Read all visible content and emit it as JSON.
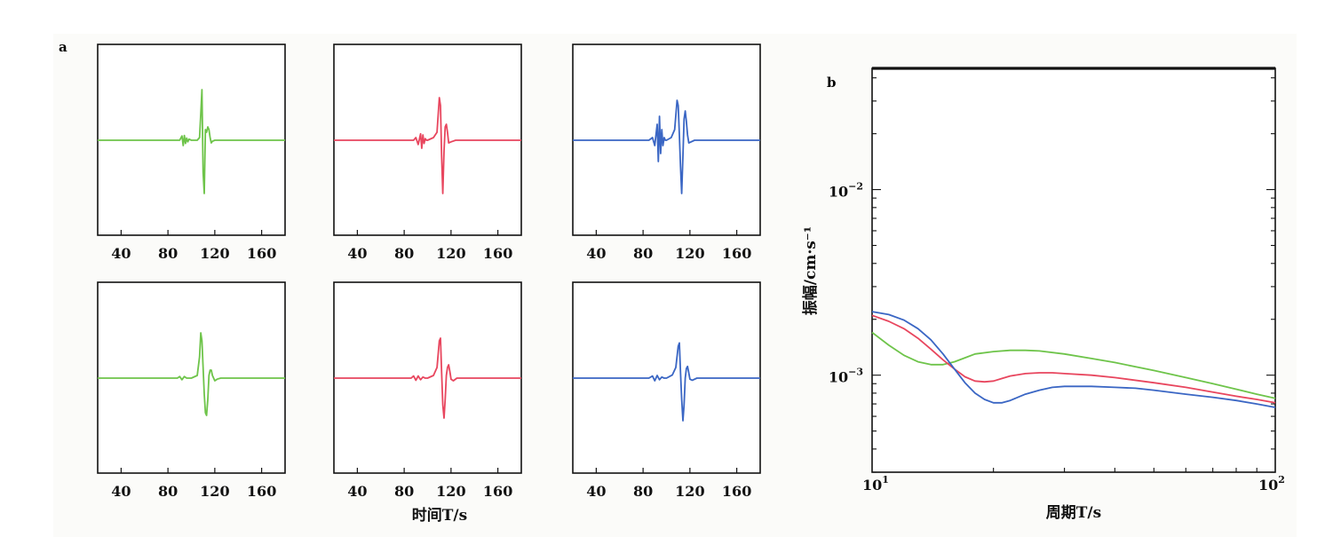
{
  "panel_a": {
    "label": "a",
    "xlabel": "时间T/s",
    "xticks": [
      "40",
      "80",
      "120",
      "160"
    ]
  },
  "panel_b": {
    "label": "b",
    "xlabel": "周期T/s",
    "ylabel": "振幅/cm·s⁻¹"
  },
  "colors": {
    "green": "#6ec44a",
    "red": "#e8465e",
    "blue": "#3a66c4"
  },
  "chart_data": [
    {
      "type": "line",
      "panel": "a",
      "subplot": "row1-col1",
      "xlim": [
        20,
        180
      ],
      "series": [
        {
          "color": "green",
          "x": [
            20,
            90,
            92,
            93,
            94,
            95,
            96,
            97,
            98,
            100,
            105,
            107,
            108,
            109,
            110,
            111,
            112,
            113,
            114,
            115,
            116,
            117,
            118,
            120,
            123,
            180
          ],
          "y": [
            0,
            0,
            0.08,
            -0.1,
            0.09,
            -0.06,
            0.04,
            -0.03,
            0.02,
            0,
            0,
            0.05,
            0.5,
            0.95,
            -0.6,
            -1.0,
            0.2,
            0.15,
            0.25,
            0.2,
            0.05,
            -0.05,
            -0.02,
            0,
            0,
            0
          ]
        }
      ]
    },
    {
      "type": "line",
      "panel": "a",
      "subplot": "row1-col2",
      "xlim": [
        20,
        180
      ],
      "series": [
        {
          "color": "red",
          "x": [
            20,
            88,
            90,
            92,
            94,
            95,
            96,
            97,
            98,
            99,
            100,
            105,
            108,
            110,
            111,
            112,
            113,
            114,
            115,
            116,
            117,
            118,
            120,
            124,
            180
          ],
          "y": [
            0,
            0,
            0.05,
            -0.08,
            0.12,
            -0.15,
            0.1,
            -0.06,
            0.03,
            0,
            0,
            0.05,
            0.15,
            0.8,
            0.65,
            -0.3,
            -1.0,
            -0.2,
            0.25,
            0.3,
            0.15,
            -0.05,
            -0.03,
            0,
            0
          ]
        }
      ]
    },
    {
      "type": "line",
      "panel": "a",
      "subplot": "row1-col3",
      "xlim": [
        20,
        180
      ],
      "series": [
        {
          "color": "blue",
          "x": [
            20,
            85,
            88,
            90,
            92,
            93,
            94,
            95,
            96,
            97,
            98,
            99,
            100,
            104,
            107,
            109,
            110,
            111,
            112,
            113,
            114,
            115,
            116,
            117,
            118,
            119,
            120,
            124,
            180
          ],
          "y": [
            0,
            0,
            0.05,
            -0.1,
            0.3,
            -0.4,
            0.45,
            -0.25,
            0.2,
            -0.1,
            0.05,
            0,
            0,
            0.05,
            0.2,
            0.75,
            0.65,
            0.1,
            -0.5,
            -1.0,
            -0.3,
            0.4,
            0.55,
            0.35,
            0.1,
            -0.05,
            -0.04,
            0,
            0
          ]
        }
      ]
    },
    {
      "type": "line",
      "panel": "a",
      "subplot": "row2-col1",
      "xlim": [
        20,
        180
      ],
      "series": [
        {
          "color": "green",
          "x": [
            20,
            88,
            90,
            92,
            94,
            96,
            100,
            105,
            107,
            108,
            109,
            110,
            111,
            112,
            113,
            114,
            115,
            116,
            117,
            118,
            120,
            122,
            125,
            180
          ],
          "y": [
            0,
            0,
            0.03,
            -0.03,
            0.03,
            0,
            0,
            0.05,
            0.4,
            0.85,
            0.7,
            0.2,
            -0.3,
            -0.65,
            -0.7,
            -0.4,
            0.05,
            0.15,
            0.15,
            0.05,
            -0.05,
            -0.02,
            0,
            0
          ]
        }
      ]
    },
    {
      "type": "line",
      "panel": "a",
      "subplot": "row2-col2",
      "xlim": [
        20,
        180
      ],
      "series": [
        {
          "color": "red",
          "x": [
            20,
            86,
            88,
            90,
            92,
            94,
            96,
            98,
            100,
            105,
            108,
            110,
            111,
            112,
            113,
            114,
            115,
            116,
            117,
            118,
            119,
            120,
            122,
            125,
            180
          ],
          "y": [
            0,
            0,
            0.04,
            -0.04,
            0.04,
            -0.03,
            0.02,
            0,
            0,
            0.05,
            0.2,
            0.7,
            0.75,
            0.1,
            -0.5,
            -0.75,
            -0.4,
            0.05,
            0.2,
            0.25,
            0.12,
            -0.02,
            -0.05,
            0,
            0
          ]
        }
      ]
    },
    {
      "type": "line",
      "panel": "a",
      "subplot": "row2-col3",
      "xlim": [
        20,
        180
      ],
      "series": [
        {
          "color": "blue",
          "x": [
            20,
            85,
            88,
            90,
            92,
            94,
            96,
            98,
            100,
            105,
            108,
            110,
            111,
            112,
            113,
            114,
            115,
            116,
            117,
            118,
            119,
            120,
            122,
            126,
            180
          ],
          "y": [
            0,
            0,
            0.04,
            -0.05,
            0.05,
            -0.03,
            0.02,
            0,
            0,
            0.06,
            0.2,
            0.6,
            0.66,
            0.1,
            -0.4,
            -0.8,
            -0.5,
            0,
            0.18,
            0.22,
            0.1,
            -0.02,
            -0.04,
            0,
            0
          ]
        }
      ]
    },
    {
      "type": "line",
      "panel": "b",
      "xscale": "log",
      "yscale": "log",
      "xlim": [
        10,
        100
      ],
      "ylim": [
        0.0003,
        0.045
      ],
      "xtick_labels": [
        "10^1",
        "10^2"
      ],
      "ytick_labels": [
        "10^-2",
        "10^-3"
      ],
      "series": [
        {
          "color": "green",
          "x": [
            10,
            11,
            12,
            13,
            14,
            15,
            16,
            17,
            18,
            20,
            22,
            24,
            26,
            30,
            35,
            40,
            50,
            60,
            70,
            80,
            90,
            100
          ],
          "y": [
            0.0017,
            0.00145,
            0.00128,
            0.00118,
            0.00114,
            0.00114,
            0.00118,
            0.00124,
            0.0013,
            0.00134,
            0.00136,
            0.00136,
            0.00135,
            0.0013,
            0.00123,
            0.00117,
            0.00106,
            0.00097,
            0.0009,
            0.00084,
            0.00079,
            0.00075
          ]
        },
        {
          "color": "red",
          "x": [
            10,
            11,
            12,
            13,
            14,
            15,
            16,
            17,
            18,
            19,
            20,
            21,
            22,
            24,
            26,
            28,
            30,
            35,
            40,
            50,
            60,
            70,
            80,
            90,
            100
          ],
          "y": [
            0.0021,
            0.00195,
            0.00178,
            0.00158,
            0.00138,
            0.00121,
            0.00108,
            0.00098,
            0.00093,
            0.00092,
            0.00093,
            0.00096,
            0.00099,
            0.00102,
            0.00103,
            0.00103,
            0.00102,
            0.001,
            0.00097,
            0.00091,
            0.00086,
            0.00081,
            0.00077,
            0.00074,
            0.00071
          ]
        },
        {
          "color": "blue",
          "x": [
            10,
            11,
            12,
            13,
            14,
            15,
            16,
            17,
            18,
            19,
            20,
            21,
            22,
            23,
            24,
            26,
            28,
            30,
            35,
            40,
            45,
            50,
            60,
            70,
            80,
            90,
            100
          ],
          "y": [
            0.0022,
            0.00212,
            0.00198,
            0.00178,
            0.00155,
            0.0013,
            0.00108,
            0.00091,
            0.0008,
            0.00074,
            0.00071,
            0.00071,
            0.00073,
            0.00076,
            0.00079,
            0.00083,
            0.00086,
            0.00087,
            0.00087,
            0.00086,
            0.00085,
            0.00083,
            0.00079,
            0.00076,
            0.00073,
            0.0007,
            0.00067
          ]
        }
      ]
    }
  ]
}
